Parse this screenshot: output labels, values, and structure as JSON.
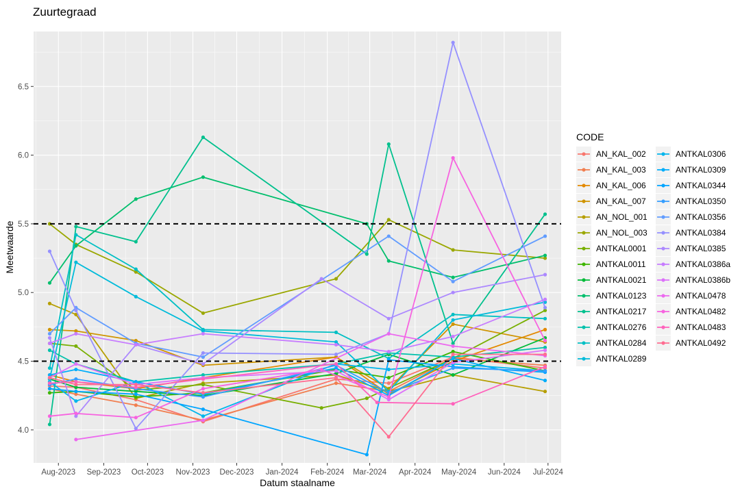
{
  "chart_data": {
    "type": "line",
    "title": "Zuurtegraad",
    "xlabel": "Datum staalname",
    "ylabel": "Meetwaarde",
    "xlim": [
      "2023-07-15",
      "2024-07-10"
    ],
    "ylim": [
      3.76,
      6.9
    ],
    "x_ticks": [
      "2023-08-01",
      "2023-09-01",
      "2023-10-01",
      "2023-11-01",
      "2023-12-01",
      "2024-01-01",
      "2024-02-01",
      "2024-03-01",
      "2024-04-01",
      "2024-05-01",
      "2024-06-01",
      "2024-07-01"
    ],
    "x_tick_labels": [
      "Aug-2023",
      "Sep-2023",
      "Oct-2023",
      "Nov-2023",
      "Dec-2023",
      "Jan-2024",
      "Feb-2024",
      "Mar-2024",
      "Apr-2024",
      "May-2024",
      "Jun-2024",
      "Jul-2024"
    ],
    "y_ticks": [
      4.0,
      4.5,
      5.0,
      5.5,
      6.0,
      6.5
    ],
    "y_tick_labels": [
      "4.0",
      "4.5",
      "5.0",
      "5.5",
      "6.0",
      "6.5"
    ],
    "reference_lines": [
      4.5,
      5.5
    ],
    "grid": true,
    "legend_title": "CODE",
    "legend_position": "right",
    "series": [
      {
        "name": "AN_KAL_002",
        "color": "#F8766D",
        "x": [
          "2023-07-26",
          "2023-08-13",
          "2023-09-23",
          "2023-11-08",
          "2024-02-07",
          "2024-03-14",
          "2024-04-27",
          "2024-06-29"
        ],
        "y": [
          4.32,
          4.31,
          4.22,
          4.06,
          4.37,
          4.34,
          4.53,
          4.45
        ]
      },
      {
        "name": "AN_KAL_003",
        "color": "#F17E4F",
        "x": [
          "2023-07-26",
          "2023-08-13",
          "2023-09-23",
          "2023-11-08",
          "2024-02-07",
          "2024-03-14",
          "2024-04-27",
          "2024-06-29"
        ],
        "y": [
          4.3,
          4.26,
          4.18,
          4.07,
          4.34,
          4.28,
          4.52,
          4.47
        ]
      },
      {
        "name": "AN_KAL_006",
        "color": "#E38900",
        "x": [
          "2023-07-26",
          "2023-08-13",
          "2023-09-23",
          "2023-11-08",
          "2024-02-07",
          "2024-03-14",
          "2024-04-27",
          "2024-06-29"
        ],
        "y": [
          4.4,
          4.35,
          4.3,
          4.38,
          4.53,
          4.26,
          4.5,
          4.73
        ]
      },
      {
        "name": "AN_KAL_007",
        "color": "#CF9400",
        "x": [
          "2023-07-26",
          "2023-08-13",
          "2023-09-23",
          "2023-11-08",
          "2024-02-07",
          "2024-03-14",
          "2024-04-27",
          "2024-06-29"
        ],
        "y": [
          4.73,
          4.72,
          4.65,
          4.47,
          4.53,
          4.3,
          4.77,
          4.64
        ]
      },
      {
        "name": "AN_NOL_001",
        "color": "#B69E00",
        "x": [
          "2023-07-26",
          "2023-08-13",
          "2023-09-23",
          "2023-11-08",
          "2024-02-07",
          "2024-03-14",
          "2024-04-27",
          "2024-06-29"
        ],
        "y": [
          4.92,
          4.84,
          4.23,
          4.34,
          4.4,
          4.28,
          4.4,
          4.28
        ]
      },
      {
        "name": "AN_NOL_003",
        "color": "#9AA700",
        "x": [
          "2023-07-26",
          "2023-08-13",
          "2023-09-23",
          "2023-11-08",
          "2024-02-07",
          "2024-03-14",
          "2024-04-27",
          "2024-06-29"
        ],
        "y": [
          5.5,
          5.35,
          5.15,
          4.85,
          5.1,
          5.53,
          5.31,
          5.25
        ]
      },
      {
        "name": "ANTKAL0001",
        "color": "#78AF00",
        "x": [
          "2023-07-26",
          "2023-08-13",
          "2023-09-23",
          "2023-11-08",
          "2024-01-28",
          "2024-02-28",
          "2024-04-27",
          "2024-06-29"
        ],
        "y": [
          4.63,
          4.61,
          4.29,
          4.33,
          4.16,
          4.23,
          4.52,
          4.87
        ]
      },
      {
        "name": "ANTKAL0011",
        "color": "#3EB500",
        "x": [
          "2023-07-26",
          "2023-08-13",
          "2023-09-23",
          "2023-11-08",
          "2024-02-07",
          "2024-03-14",
          "2024-04-27",
          "2024-06-29"
        ],
        "y": [
          4.27,
          4.28,
          4.24,
          4.27,
          4.44,
          4.38,
          4.57,
          4.43
        ]
      },
      {
        "name": "ANTKAL0021",
        "color": "#00BA38",
        "x": [
          "2023-07-26",
          "2023-08-13",
          "2023-09-23",
          "2023-11-08",
          "2024-02-07",
          "2024-03-14",
          "2024-04-27",
          "2024-06-29"
        ],
        "y": [
          4.37,
          4.31,
          4.28,
          4.25,
          4.41,
          4.55,
          4.4,
          4.67
        ]
      },
      {
        "name": "ANTKAL0123",
        "color": "#00BE6C",
        "x": [
          "2023-07-26",
          "2023-08-13",
          "2023-09-23",
          "2023-11-08",
          "2024-02-28",
          "2024-03-14",
          "2024-04-27",
          "2024-06-29"
        ],
        "y": [
          5.07,
          5.34,
          5.68,
          5.84,
          5.5,
          5.23,
          5.11,
          5.27
        ]
      },
      {
        "name": "ANTKAL0217",
        "color": "#00C08D",
        "x": [
          "2023-07-26",
          "2023-08-13",
          "2023-09-23",
          "2023-11-08",
          "2024-02-28",
          "2024-03-14",
          "2024-04-27",
          "2024-06-29"
        ],
        "y": [
          4.04,
          5.48,
          5.37,
          6.13,
          5.28,
          6.08,
          4.63,
          5.57
        ]
      },
      {
        "name": "ANTKAL0276",
        "color": "#00C1AB",
        "x": [
          "2023-07-26",
          "2023-08-13",
          "2023-09-23",
          "2023-11-08",
          "2024-02-07",
          "2024-03-14",
          "2024-04-27",
          "2024-06-29"
        ],
        "y": [
          4.58,
          4.48,
          4.35,
          4.4,
          4.48,
          4.56,
          4.53,
          4.6
        ]
      },
      {
        "name": "ANTKAL0284",
        "color": "#00BFC4",
        "x": [
          "2023-07-26",
          "2023-08-13",
          "2023-09-23",
          "2023-11-08",
          "2024-02-07",
          "2024-03-14",
          "2024-04-27",
          "2024-06-29"
        ],
        "y": [
          4.45,
          5.42,
          5.17,
          4.73,
          4.71,
          4.52,
          4.84,
          4.81
        ]
      },
      {
        "name": "ANTKAL0289",
        "color": "#00BBDA",
        "x": [
          "2023-07-26",
          "2023-08-13",
          "2023-09-23",
          "2023-11-08",
          "2024-02-07",
          "2024-03-14",
          "2024-04-27",
          "2024-06-29"
        ],
        "y": [
          4.37,
          5.22,
          4.97,
          4.72,
          4.64,
          4.28,
          4.8,
          4.93
        ]
      },
      {
        "name": "ANTKAL0306",
        "color": "#00B5EC",
        "x": [
          "2023-07-26",
          "2023-08-13",
          "2023-09-23",
          "2023-11-08",
          "2024-02-07",
          "2024-03-14",
          "2024-04-27",
          "2024-06-29"
        ],
        "y": [
          4.35,
          4.21,
          4.35,
          4.1,
          4.48,
          4.44,
          4.48,
          4.43
        ]
      },
      {
        "name": "ANTKAL0309",
        "color": "#00ADFA",
        "x": [
          "2023-07-26",
          "2023-08-13",
          "2023-09-23",
          "2023-11-08",
          "2024-02-07",
          "2024-03-14",
          "2024-04-27",
          "2024-06-29"
        ],
        "y": [
          4.4,
          4.44,
          4.35,
          4.26,
          4.45,
          4.25,
          4.52,
          4.36
        ]
      },
      {
        "name": "ANTKAL0344",
        "color": "#00A5FF",
        "x": [
          "2023-07-26",
          "2023-08-13",
          "2023-09-23",
          "2023-11-08",
          "2024-02-28",
          "2024-03-14",
          "2024-04-27",
          "2024-06-29"
        ],
        "y": [
          4.3,
          4.28,
          4.26,
          4.15,
          3.82,
          4.51,
          4.46,
          4.42
        ]
      },
      {
        "name": "ANTKAL0350",
        "color": "#359EFF",
        "x": [
          "2023-07-26",
          "2023-08-13",
          "2023-09-23",
          "2023-11-08",
          "2024-02-07",
          "2024-03-14",
          "2024-04-27",
          "2024-06-29"
        ],
        "y": [
          4.33,
          4.37,
          4.3,
          4.24,
          4.47,
          4.27,
          4.45,
          4.43
        ]
      },
      {
        "name": "ANTKAL0356",
        "color": "#619CFF",
        "x": [
          "2023-07-26",
          "2023-08-13",
          "2023-09-23",
          "2023-11-08",
          "2024-03-14",
          "2024-04-27",
          "2024-06-29"
        ],
        "y": [
          4.7,
          4.89,
          4.63,
          4.53,
          5.41,
          5.08,
          5.41
        ]
      },
      {
        "name": "ANTKAL0384",
        "color": "#9590FF",
        "x": [
          "2023-07-26",
          "2023-08-13",
          "2023-09-23",
          "2023-11-08",
          "2024-02-07",
          "2024-03-14",
          "2024-04-27",
          "2024-06-29"
        ],
        "y": [
          5.3,
          4.87,
          4.01,
          4.56,
          4.55,
          4.7,
          6.82,
          4.89
        ]
      },
      {
        "name": "ANTKAL0385",
        "color": "#AC88FF",
        "x": [
          "2023-07-26",
          "2023-08-13",
          "2023-09-23",
          "2023-11-08",
          "2024-01-28",
          "2024-03-14",
          "2024-04-27",
          "2024-06-29"
        ],
        "y": [
          4.67,
          4.1,
          4.62,
          4.48,
          5.1,
          4.81,
          5.0,
          5.13
        ]
      },
      {
        "name": "ANTKAL0386a",
        "color": "#C77CFF",
        "x": [
          "2023-07-26",
          "2023-08-13",
          "2023-09-23",
          "2023-11-08",
          "2024-02-07",
          "2024-03-14",
          "2024-04-27",
          "2024-06-29"
        ],
        "y": [
          4.63,
          4.7,
          4.62,
          4.7,
          4.62,
          4.57,
          4.68,
          4.95
        ]
      },
      {
        "name": "ANTKAL0386b",
        "color": "#DC71FA",
        "x": [
          "2023-07-26",
          "2023-08-13",
          "2023-09-23",
          "2023-11-08",
          "2024-02-07",
          "2024-03-14",
          "2024-04-27",
          "2024-06-29"
        ],
        "y": [
          4.38,
          4.48,
          4.33,
          4.38,
          4.43,
          4.22,
          4.49,
          4.58
        ]
      },
      {
        "name": "ANTKAL0478",
        "color": "#EC69EF",
        "x": [
          "2023-08-13",
          "2023-11-08",
          "2024-03-14",
          "2024-04-27",
          "2024-06-29"
        ],
        "y": [
          3.93,
          4.07,
          4.7,
          4.61,
          4.54
        ]
      },
      {
        "name": "ANTKAL0482",
        "color": "#F763E0",
        "x": [
          "2023-07-26",
          "2023-08-13",
          "2023-09-23",
          "2023-11-08",
          "2024-01-28",
          "2024-03-14",
          "2024-04-27",
          "2024-06-29"
        ],
        "y": [
          4.1,
          4.12,
          4.09,
          4.3,
          4.44,
          4.24,
          5.98,
          4.65
        ]
      },
      {
        "name": "ANTKAL0483",
        "color": "#FF62BC",
        "x": [
          "2023-07-26",
          "2023-08-13",
          "2023-09-23",
          "2023-11-08",
          "2024-02-07",
          "2024-03-06",
          "2024-04-27",
          "2024-06-29"
        ],
        "y": [
          4.34,
          4.35,
          4.31,
          4.37,
          4.48,
          4.2,
          4.19,
          4.46
        ]
      },
      {
        "name": "ANTKAL0492",
        "color": "#FF6C91",
        "x": [
          "2023-07-26",
          "2023-08-13",
          "2023-09-23",
          "2023-11-08",
          "2024-02-07",
          "2024-03-14",
          "2024-04-27",
          "2024-06-29"
        ],
        "y": [
          4.38,
          4.33,
          4.33,
          4.27,
          4.38,
          3.95,
          4.55,
          4.55
        ]
      }
    ]
  }
}
